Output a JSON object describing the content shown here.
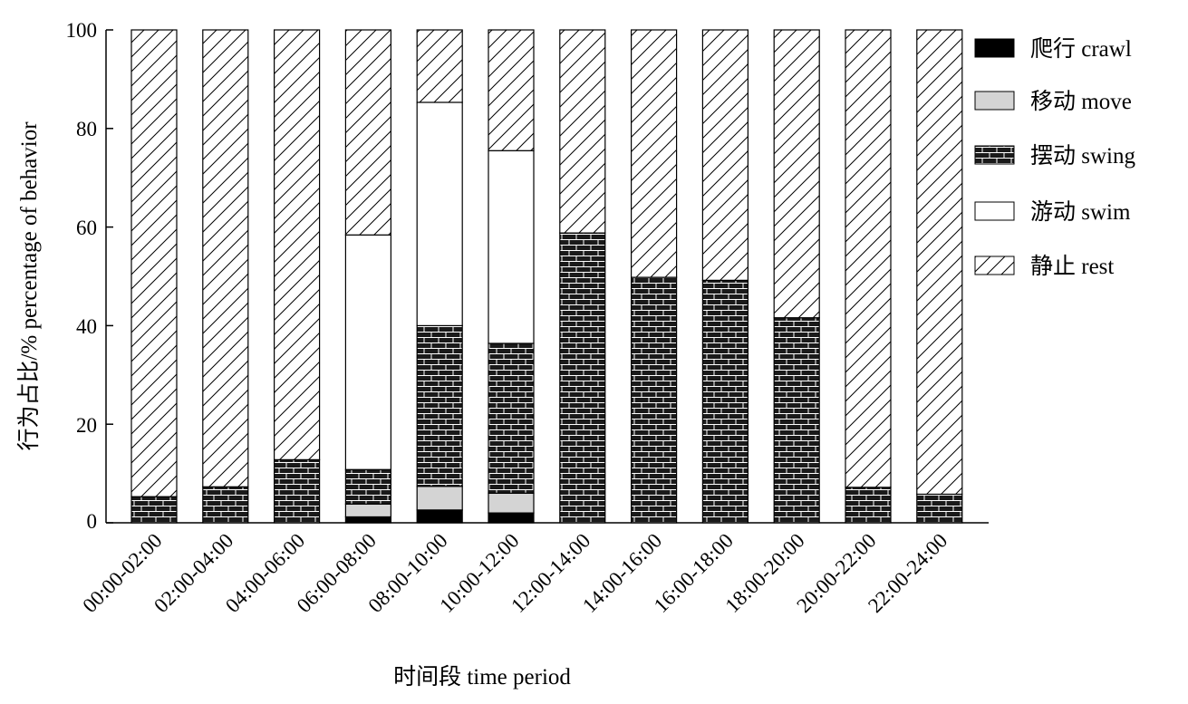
{
  "chart_data": {
    "type": "bar",
    "stacked": true,
    "categories": [
      "00:00-02:00",
      "02:00-04:00",
      "04:00-06:00",
      "06:00-08:00",
      "08:00-10:00",
      "10:00-12:00",
      "12:00-14:00",
      "14:00-16:00",
      "16:00-18:00",
      "18:00-20:00",
      "20:00-22:00",
      "22:00-24:00"
    ],
    "series": [
      {
        "name": "爬行 crawl",
        "pattern": "solid-black",
        "values": [
          0,
          0,
          0,
          1.2,
          2.6,
          2.0,
          0,
          0,
          0,
          0,
          0,
          0
        ]
      },
      {
        "name": "移动 move",
        "pattern": "solid-gray",
        "values": [
          0,
          0,
          0,
          2.6,
          4.8,
          4.0,
          0,
          0,
          0,
          0,
          0,
          0
        ]
      },
      {
        "name": "摆动 swing",
        "pattern": "brick",
        "values": [
          5.3,
          7.3,
          12.8,
          7.0,
          32.6,
          30.4,
          58.8,
          49.8,
          49.2,
          41.6,
          7.2,
          5.8
        ]
      },
      {
        "name": "游动 swim",
        "pattern": "white",
        "values": [
          0,
          0,
          0,
          47.6,
          45.3,
          39.1,
          0,
          0,
          0,
          0,
          0,
          0
        ]
      },
      {
        "name": "静止 rest",
        "pattern": "hatch",
        "values": [
          94.7,
          92.7,
          87.2,
          41.6,
          14.7,
          24.5,
          41.2,
          50.2,
          50.8,
          58.4,
          92.8,
          94.2
        ]
      }
    ],
    "y_ticks": [
      "0",
      "20",
      "40",
      "60",
      "80",
      "100"
    ],
    "ylim": [
      0,
      100
    ],
    "xlabel": "时间段 time period",
    "ylabel": "行为占比/% percentage of behavior",
    "legend_position": "top-right",
    "grid": false,
    "colors": {
      "axis": "#000000",
      "move_fill": "#d4d4d4",
      "crawl_fill": "#000000",
      "brick_fill": "#1a1a1a"
    }
  }
}
